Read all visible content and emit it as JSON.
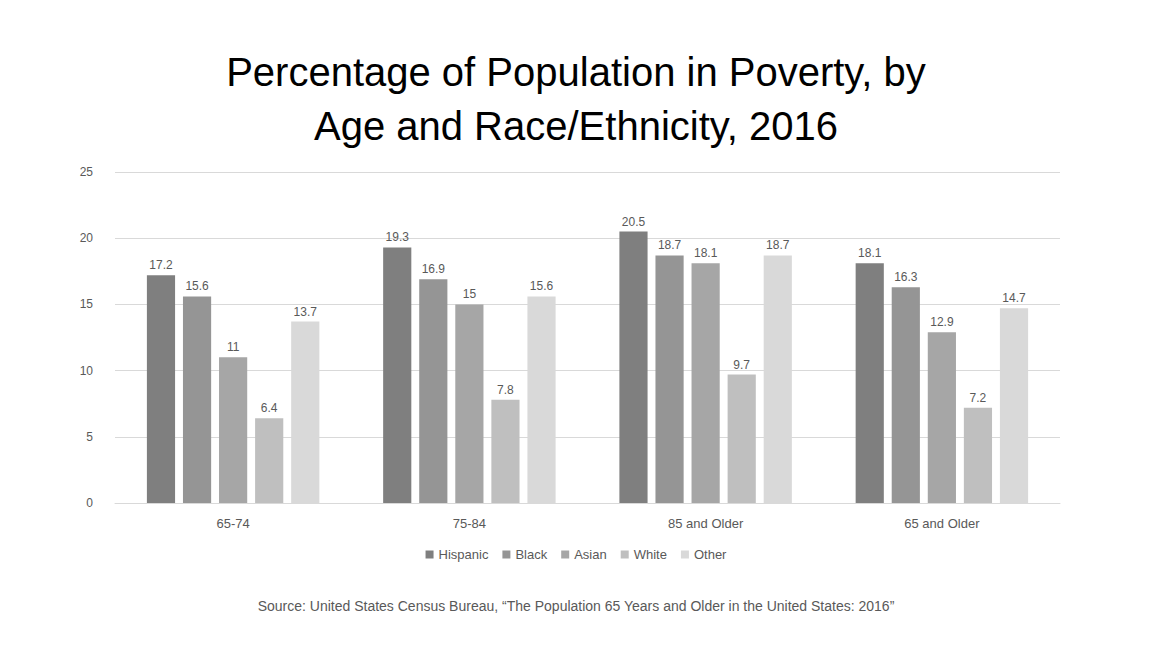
{
  "chart_data": {
    "type": "bar",
    "title": "Percentage of Population in Poverty, by\nAge and Race/Ethnicity, 2016",
    "source": "Source: United States Census Bureau, “The Population 65 Years and Older in the United States: 2016”",
    "categories": [
      "65-74",
      "75-84",
      "85 and Older",
      "65 and Older"
    ],
    "series": [
      {
        "name": "Hispanic",
        "color": "#7f7f7f",
        "values": [
          17.2,
          19.3,
          20.5,
          18.1
        ]
      },
      {
        "name": "Black",
        "color": "#959595",
        "values": [
          15.6,
          16.9,
          18.7,
          16.3
        ]
      },
      {
        "name": "Asian",
        "color": "#a6a6a6",
        "values": [
          11,
          15,
          18.1,
          12.9
        ]
      },
      {
        "name": "White",
        "color": "#bfbfbf",
        "values": [
          6.4,
          7.8,
          9.7,
          7.2
        ]
      },
      {
        "name": "Other",
        "color": "#d9d9d9",
        "values": [
          13.7,
          15.6,
          18.7,
          14.7
        ]
      }
    ],
    "ylim": [
      0,
      25
    ],
    "yticks": [
      0,
      5,
      10,
      15,
      20,
      25
    ],
    "grid": true,
    "legend": "bottom",
    "data_labels": true
  }
}
